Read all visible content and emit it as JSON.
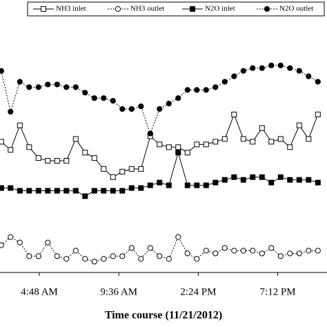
{
  "chart_data": {
    "type": "line",
    "x_label": "Time course (11/21/2012)",
    "x": [
      2.5,
      3.0625,
      3.625,
      4.1875,
      4.75,
      5.3125,
      5.875,
      6.4375,
      7,
      7.5625,
      8.125,
      8.6875,
      9.25,
      9.8125,
      10.375,
      10.9375,
      11.5,
      12.0625,
      12.625,
      13.1875,
      13.75,
      14.3125,
      14.875,
      15.4375,
      16,
      16.5625,
      17.125,
      17.6875,
      18.25,
      18.8125,
      19.375,
      19.9375,
      20.5,
      21.0625,
      21.625
    ],
    "xlim": [
      2.425,
      22.175
    ],
    "xticks": [
      {
        "value": 4.8,
        "label": "4:48 AM"
      },
      {
        "value": 9.6,
        "label": "9:36 AM"
      },
      {
        "value": 14.4,
        "label": "2:24 PM"
      },
      {
        "value": 19.2,
        "label": "7:12 PM"
      }
    ],
    "ylim": [
      0,
      100
    ],
    "grid": false,
    "series": [
      {
        "name": "NH3 inlet",
        "color": "#000000",
        "line_style": "solid",
        "marker": "square",
        "marker_fill": "open",
        "values": [
          48,
          45,
          54,
          46,
          42,
          41,
          41,
          41,
          49,
          44,
          42,
          38,
          35,
          37,
          38,
          38,
          50,
          47,
          46,
          46,
          44,
          47,
          47,
          48,
          49,
          58,
          49,
          48,
          53,
          48,
          49,
          46,
          54,
          49,
          58
        ]
      },
      {
        "name": "NH3 outlet",
        "color": "#000000",
        "line_style": "dotted",
        "marker": "circle",
        "marker_fill": "open",
        "values": [
          10,
          13,
          11,
          6,
          6,
          11,
          6,
          5,
          8,
          5,
          4,
          5,
          6,
          6,
          9,
          5,
          9,
          6,
          5,
          13,
          7,
          5,
          8,
          7,
          9,
          8,
          8,
          8,
          7,
          9,
          6,
          7,
          7,
          8,
          8
        ]
      },
      {
        "name": "N2O inlet",
        "color": "#000000",
        "line_style": "solid",
        "marker": "square",
        "marker_fill": "filled",
        "values": [
          31,
          31,
          30,
          30,
          30,
          30,
          30,
          30,
          30,
          28,
          30,
          30,
          30,
          30,
          31,
          31,
          32,
          33,
          32,
          44,
          32,
          32,
          32,
          33,
          34,
          35,
          34,
          35,
          35,
          33,
          35,
          34,
          34,
          34,
          33
        ]
      },
      {
        "name": "N2O outlet",
        "color": "#000000",
        "line_style": "dotted",
        "marker": "circle",
        "marker_fill": "filled",
        "values": [
          74,
          59,
          70,
          68,
          68,
          69,
          69,
          68,
          68,
          66,
          64,
          64,
          63,
          60,
          60,
          61,
          51,
          60,
          62,
          64,
          67,
          67,
          67,
          68,
          70,
          72,
          74,
          75,
          75,
          76,
          76,
          75,
          74,
          72,
          70
        ]
      }
    ]
  }
}
